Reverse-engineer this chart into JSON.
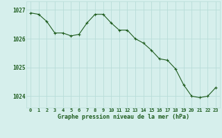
{
  "x": [
    0,
    1,
    2,
    3,
    4,
    5,
    6,
    7,
    8,
    9,
    10,
    11,
    12,
    13,
    14,
    15,
    16,
    17,
    18,
    19,
    20,
    21,
    22,
    23
  ],
  "y": [
    1026.9,
    1026.85,
    1026.6,
    1026.2,
    1026.2,
    1026.1,
    1026.15,
    1026.55,
    1026.85,
    1026.85,
    1026.55,
    1026.3,
    1026.3,
    1026.0,
    1025.85,
    1025.6,
    1025.3,
    1025.25,
    1024.95,
    1024.4,
    1024.0,
    1023.95,
    1024.0,
    1024.3
  ],
  "line_color": "#1e5c1e",
  "marker": "+",
  "marker_color": "#1e5c1e",
  "background_color": "#d6efec",
  "grid_color": "#b8ddd8",
  "xlabel": "Graphe pression niveau de la mer (hPa)",
  "xlabel_color": "#1e5c1e",
  "tick_color": "#1e5c1e",
  "ytick_values": [
    1024,
    1025,
    1026,
    1027
  ],
  "ylim": [
    1023.6,
    1027.3
  ],
  "xlim": [
    -0.5,
    23.5
  ],
  "xtick_labels": [
    "0",
    "1",
    "2",
    "3",
    "4",
    "5",
    "6",
    "7",
    "8",
    "9",
    "10",
    "11",
    "12",
    "13",
    "14",
    "15",
    "16",
    "17",
    "18",
    "19",
    "20",
    "21",
    "22",
    "23"
  ],
  "tick_fontsize": 5.0,
  "ytick_fontsize": 5.5,
  "xlabel_fontsize": 6.0,
  "linewidth": 0.8,
  "markersize": 3.0
}
